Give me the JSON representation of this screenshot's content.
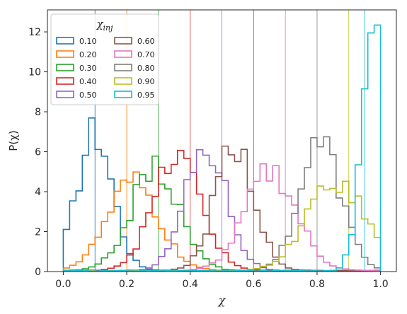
{
  "chart_data": {
    "type": "histogram",
    "xlabel": "χ",
    "ylabel": "P(χ)",
    "xlim": [
      -0.05,
      1.05
    ],
    "ylim": [
      0,
      13.1
    ],
    "xticks": [
      "0.0",
      "0.2",
      "0.4",
      "0.6",
      "0.8",
      "1.0"
    ],
    "yticks": [
      "0",
      "2",
      "4",
      "6",
      "8",
      "10",
      "12"
    ],
    "xtick_values": [
      0.0,
      0.2,
      0.4,
      0.6,
      0.8,
      1.0
    ],
    "ytick_values": [
      0,
      2,
      4,
      6,
      8,
      10,
      12
    ],
    "grid": false,
    "legend": {
      "title": "χ_inj",
      "placement": "top-left",
      "columns": 2
    },
    "series": [
      {
        "name": "0.10",
        "color": "#1f77b4",
        "injected": 0.1,
        "center": 0.1,
        "sigma": 0.055,
        "peak": 6.85,
        "tail": 0.2
      },
      {
        "name": "0.20",
        "color": "#ff7f0e",
        "injected": 0.2,
        "center": 0.22,
        "sigma": 0.08,
        "peak": 4.3,
        "tail": 0.2
      },
      {
        "name": "0.30",
        "color": "#2ca02c",
        "injected": 0.3,
        "center": 0.29,
        "sigma": 0.075,
        "peak": 5.1,
        "tail": 0.2
      },
      {
        "name": "0.40",
        "color": "#d62728",
        "injected": 0.4,
        "center": 0.36,
        "sigma": 0.075,
        "peak": 5.6,
        "tail": 0.2
      },
      {
        "name": "0.50",
        "color": "#9467bd",
        "injected": 0.5,
        "center": 0.45,
        "sigma": 0.065,
        "peak": 6.15,
        "tail": 0.2
      },
      {
        "name": "0.60",
        "color": "#8c564b",
        "injected": 0.6,
        "center": 0.54,
        "sigma": 0.06,
        "peak": 6.45,
        "tail": 0.2
      },
      {
        "name": "0.70",
        "color": "#e377c2",
        "injected": 0.7,
        "center": 0.655,
        "sigma": 0.08,
        "peak": 4.9,
        "tail": 0.2
      },
      {
        "name": "0.80",
        "color": "#7f7f7f",
        "injected": 0.8,
        "center": 0.81,
        "sigma": 0.065,
        "peak": 6.25,
        "tail": 0.2
      },
      {
        "name": "0.90",
        "color": "#bcbd22",
        "injected": 0.9,
        "center": 0.86,
        "sigma": 0.09,
        "peak": 4.5,
        "tail": 0.2
      },
      {
        "name": "0.95",
        "color": "#17becf",
        "injected": 0.95,
        "center": 0.985,
        "sigma": 0.04,
        "peak": 12.5,
        "tail": 0.0
      }
    ]
  }
}
